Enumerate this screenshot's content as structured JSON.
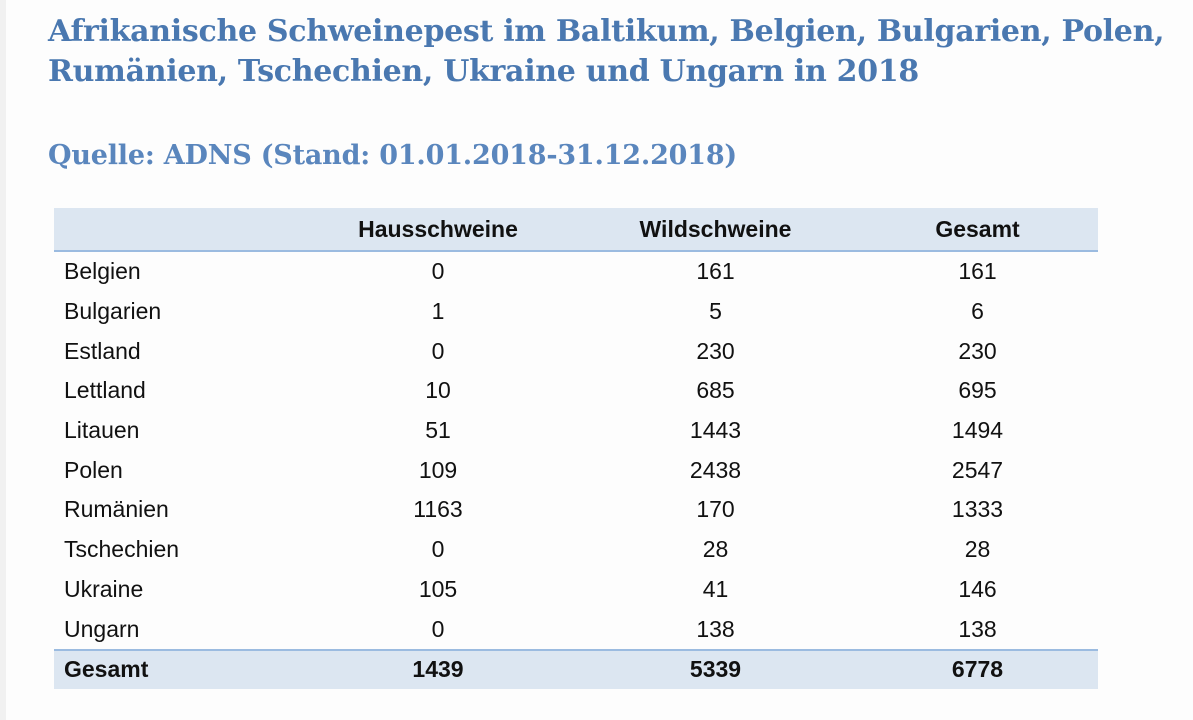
{
  "title": "Afrikanische Schweinepest im Baltikum, Belgien, Bulgarien, Polen, Rumänien, Tschechien, Ukraine und Ungarn in 2018",
  "subtitle": "Quelle: ADNS (Stand: 01.01.2018-31.12.2018)",
  "table": {
    "headers": [
      "",
      "Hausschweine",
      "Wildschweine",
      "Gesamt"
    ],
    "rows": [
      [
        "Belgien",
        "0",
        "161",
        "161"
      ],
      [
        "Bulgarien",
        "1",
        "5",
        "6"
      ],
      [
        "Estland",
        "0",
        "230",
        "230"
      ],
      [
        "Lettland",
        "10",
        "685",
        "695"
      ],
      [
        "Litauen",
        "51",
        "1443",
        "1494"
      ],
      [
        "Polen",
        "109",
        "2438",
        "2547"
      ],
      [
        "Rumänien",
        "1163",
        "170",
        "1333"
      ],
      [
        "Tschechien",
        "0",
        "28",
        "28"
      ],
      [
        "Ukraine",
        "105",
        "41",
        "146"
      ],
      [
        "Ungarn",
        "0",
        "138",
        "138"
      ]
    ],
    "total": [
      "Gesamt",
      "1439",
      "5339",
      "6778"
    ]
  },
  "colors": {
    "title": "#4a78b0",
    "subtitle": "#5a86bd",
    "header_fill": "#dce6f1",
    "rule": "#9bbbe0"
  }
}
